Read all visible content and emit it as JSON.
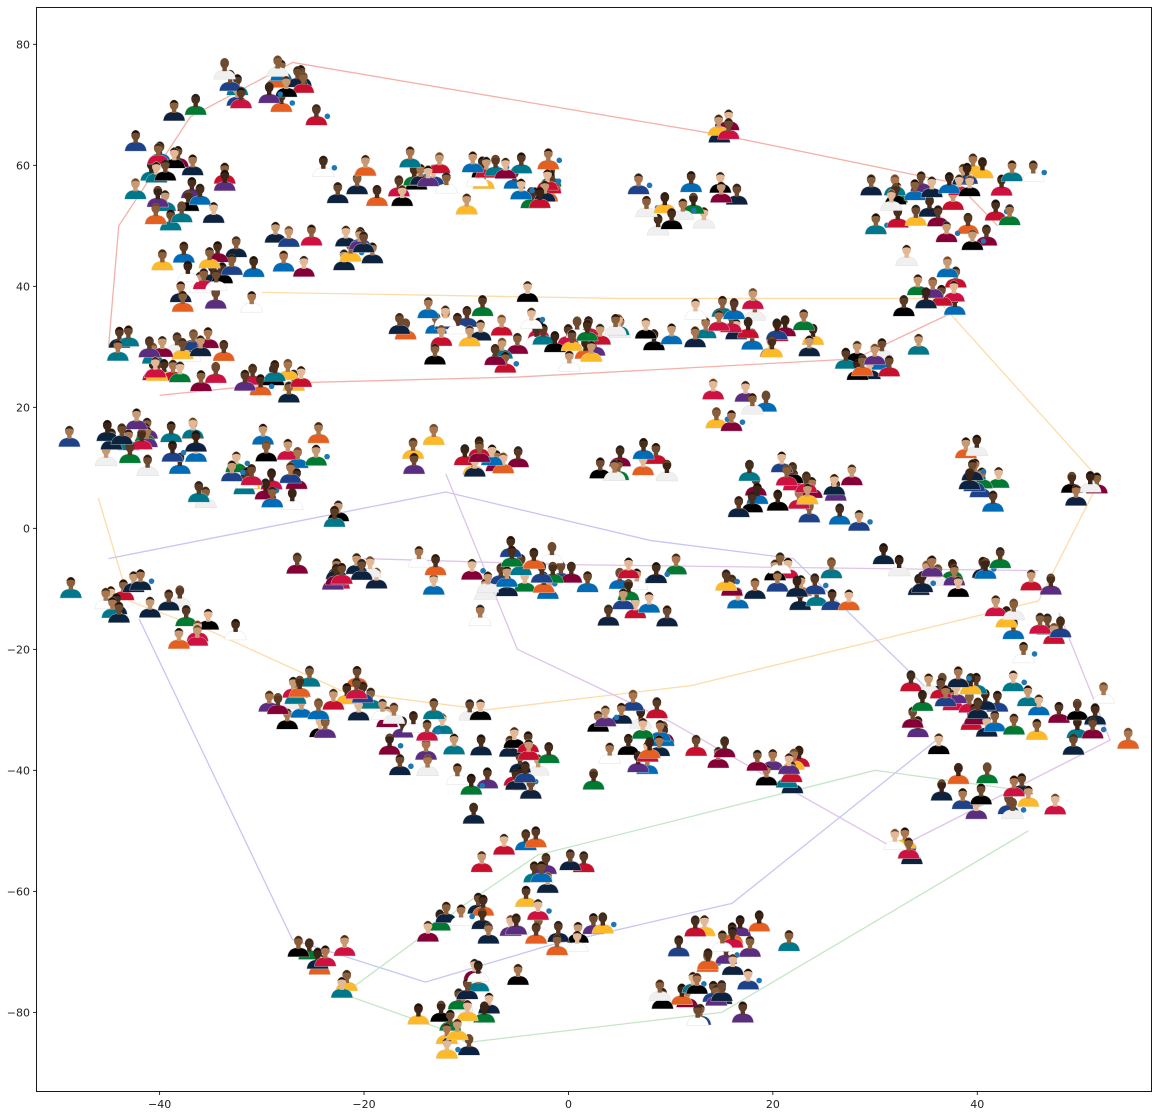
{
  "chart_data": {
    "type": "scatter",
    "title": "",
    "xlabel": "",
    "ylabel": "",
    "xlim": [
      -52,
      57
    ],
    "ylim": [
      -93,
      86
    ],
    "xticks": [
      -40,
      -20,
      0,
      20,
      40
    ],
    "yticks": [
      -80,
      -60,
      -40,
      -20,
      0,
      20,
      40,
      60,
      80
    ],
    "grid": false,
    "legend": "none",
    "marker_style": "player headshot thumbnails with small blue dot markers",
    "marker_color": "#1f77b4",
    "point_count_estimate": 450,
    "clusters": [
      {
        "center": [
          -30,
          74
        ],
        "count": 16,
        "spread": [
          5,
          5
        ]
      },
      {
        "center": [
          -38,
          57
        ],
        "count": 22,
        "spread": [
          4,
          8
        ]
      },
      {
        "center": [
          -36,
          40
        ],
        "count": 18,
        "spread": [
          5,
          5
        ]
      },
      {
        "center": [
          -38,
          27
        ],
        "count": 22,
        "spread": [
          6,
          5
        ]
      },
      {
        "center": [
          -28,
          24
        ],
        "count": 8,
        "spread": [
          4,
          3
        ]
      },
      {
        "center": [
          -42,
          15
        ],
        "count": 16,
        "spread": [
          5,
          4
        ]
      },
      {
        "center": [
          -32,
          8
        ],
        "count": 26,
        "spread": [
          8,
          6
        ]
      },
      {
        "center": [
          -43,
          -12
        ],
        "count": 12,
        "spread": [
          4,
          3
        ]
      },
      {
        "center": [
          -35,
          -17
        ],
        "count": 6,
        "spread": [
          3,
          3
        ]
      },
      {
        "center": [
          -22,
          -7
        ],
        "count": 10,
        "spread": [
          5,
          3
        ]
      },
      {
        "center": [
          -14,
          57
        ],
        "count": 22,
        "spread": [
          8,
          4
        ]
      },
      {
        "center": [
          -23,
          46
        ],
        "count": 12,
        "spread": [
          6,
          4
        ]
      },
      {
        "center": [
          -4,
          57
        ],
        "count": 14,
        "spread": [
          5,
          4
        ]
      },
      {
        "center": [
          -8,
          32
        ],
        "count": 24,
        "spread": [
          8,
          5
        ]
      },
      {
        "center": [
          2,
          31
        ],
        "count": 14,
        "spread": [
          5,
          4
        ]
      },
      {
        "center": [
          12,
          53
        ],
        "count": 12,
        "spread": [
          5,
          5
        ]
      },
      {
        "center": [
          16,
          65
        ],
        "count": 4,
        "spread": [
          2,
          2
        ]
      },
      {
        "center": [
          36,
          54
        ],
        "count": 30,
        "spread": [
          7,
          7
        ]
      },
      {
        "center": [
          35,
          40
        ],
        "count": 10,
        "spread": [
          5,
          4
        ]
      },
      {
        "center": [
          18,
          32
        ],
        "count": 22,
        "spread": [
          8,
          5
        ]
      },
      {
        "center": [
          28,
          28
        ],
        "count": 10,
        "spread": [
          5,
          3
        ]
      },
      {
        "center": [
          17,
          20
        ],
        "count": 6,
        "spread": [
          4,
          3
        ]
      },
      {
        "center": [
          -10,
          12
        ],
        "count": 12,
        "spread": [
          5,
          4
        ]
      },
      {
        "center": [
          6,
          10
        ],
        "count": 8,
        "spread": [
          4,
          3
        ]
      },
      {
        "center": [
          20,
          5
        ],
        "count": 20,
        "spread": [
          7,
          5
        ]
      },
      {
        "center": [
          40,
          9
        ],
        "count": 10,
        "spread": [
          4,
          4
        ]
      },
      {
        "center": [
          51,
          7
        ],
        "count": 4,
        "spread": [
          2,
          2
        ]
      },
      {
        "center": [
          -5,
          -8
        ],
        "count": 22,
        "spread": [
          7,
          5
        ]
      },
      {
        "center": [
          7,
          -10
        ],
        "count": 12,
        "spread": [
          4,
          5
        ]
      },
      {
        "center": [
          20,
          -9
        ],
        "count": 16,
        "spread": [
          6,
          4
        ]
      },
      {
        "center": [
          36,
          -8
        ],
        "count": 14,
        "spread": [
          5,
          3
        ]
      },
      {
        "center": [
          45,
          -15
        ],
        "count": 12,
        "spread": [
          4,
          6
        ]
      },
      {
        "center": [
          -24,
          -30
        ],
        "count": 22,
        "spread": [
          8,
          6
        ]
      },
      {
        "center": [
          -14,
          -35
        ],
        "count": 14,
        "spread": [
          6,
          5
        ]
      },
      {
        "center": [
          -5,
          -40
        ],
        "count": 16,
        "spread": [
          5,
          6
        ]
      },
      {
        "center": [
          8,
          -36
        ],
        "count": 20,
        "spread": [
          6,
          6
        ]
      },
      {
        "center": [
          20,
          -40
        ],
        "count": 10,
        "spread": [
          5,
          3
        ]
      },
      {
        "center": [
          38,
          -30
        ],
        "count": 22,
        "spread": [
          6,
          5
        ]
      },
      {
        "center": [
          48,
          -32
        ],
        "count": 14,
        "spread": [
          5,
          4
        ]
      },
      {
        "center": [
          42,
          -45
        ],
        "count": 12,
        "spread": [
          5,
          4
        ]
      },
      {
        "center": [
          33,
          -53
        ],
        "count": 4,
        "spread": [
          2,
          2
        ]
      },
      {
        "center": [
          -3,
          -55
        ],
        "count": 10,
        "spread": [
          4,
          5
        ]
      },
      {
        "center": [
          -10,
          -65
        ],
        "count": 10,
        "spread": [
          5,
          4
        ]
      },
      {
        "center": [
          0,
          -67
        ],
        "count": 10,
        "spread": [
          5,
          3
        ]
      },
      {
        "center": [
          15,
          -68
        ],
        "count": 12,
        "spread": [
          6,
          4
        ]
      },
      {
        "center": [
          -24,
          -70
        ],
        "count": 6,
        "spread": [
          3,
          3
        ]
      },
      {
        "center": [
          -22,
          -76
        ],
        "count": 2,
        "spread": [
          1,
          1
        ]
      },
      {
        "center": [
          -10,
          -78
        ],
        "count": 14,
        "spread": [
          5,
          4
        ]
      },
      {
        "center": [
          12,
          -77
        ],
        "count": 16,
        "spread": [
          6,
          4
        ]
      },
      {
        "center": [
          -11,
          -85
        ],
        "count": 4,
        "spread": [
          2,
          2
        ]
      }
    ],
    "connecting_lines": [
      {
        "color": "#f4a8a0",
        "points": [
          [
            -27,
            77
          ],
          [
            15,
            65
          ],
          [
            38,
            57
          ],
          [
            42,
            50
          ]
        ]
      },
      {
        "color": "#f4a8a0",
        "points": [
          [
            -27,
            77
          ],
          [
            -37,
            68
          ],
          [
            -44,
            50
          ],
          [
            -45,
            30
          ]
        ]
      },
      {
        "color": "#f4a8a0",
        "points": [
          [
            -40,
            22
          ],
          [
            -28,
            24
          ],
          [
            -5,
            25
          ],
          [
            28,
            28
          ],
          [
            38,
            36
          ]
        ]
      },
      {
        "color": "#fdd8a0",
        "points": [
          [
            -30,
            39
          ],
          [
            5,
            38
          ],
          [
            36,
            38
          ],
          [
            52,
            8
          ]
        ]
      },
      {
        "color": "#fdd8a0",
        "points": [
          [
            52,
            8
          ],
          [
            46,
            -12
          ],
          [
            12,
            -26
          ],
          [
            -8,
            -30
          ]
        ]
      },
      {
        "color": "#fdd8a0",
        "points": [
          [
            -46,
            5
          ],
          [
            -43,
            -12
          ],
          [
            -35,
            -17
          ],
          [
            -22,
            -27
          ],
          [
            -8,
            -30
          ]
        ]
      },
      {
        "color": "#c0c0f4",
        "points": [
          [
            -45,
            -5
          ],
          [
            -30,
            0
          ],
          [
            -12,
            6
          ],
          [
            8,
            -2
          ],
          [
            22,
            -5
          ],
          [
            36,
            -28
          ]
        ]
      },
      {
        "color": "#c0c0f4",
        "points": [
          [
            -42,
            -15
          ],
          [
            -27,
            -68
          ],
          [
            -14,
            -75
          ],
          [
            -2,
            -69
          ],
          [
            16,
            -62
          ],
          [
            36,
            -35
          ]
        ]
      },
      {
        "color": "#dcbce8",
        "points": [
          [
            -20,
            -5
          ],
          [
            0,
            -6
          ],
          [
            46,
            -7
          ]
        ]
      },
      {
        "color": "#dcbce8",
        "points": [
          [
            -12,
            9
          ],
          [
            -5,
            -20
          ],
          [
            10,
            -32
          ],
          [
            32,
            -53
          ]
        ]
      },
      {
        "color": "#dcbce8",
        "points": [
          [
            48,
            -14
          ],
          [
            53,
            -35
          ],
          [
            32,
            -53
          ]
        ]
      },
      {
        "color": "#bfe3bf",
        "points": [
          [
            -22,
            -77
          ],
          [
            -12,
            -83
          ],
          [
            -10,
            -85
          ],
          [
            15,
            -80
          ],
          [
            45,
            -50
          ]
        ]
      },
      {
        "color": "#bfe3bf",
        "points": [
          [
            -22,
            -77
          ],
          [
            -10,
            -62
          ],
          [
            -3,
            -54
          ],
          [
            30,
            -40
          ],
          [
            43,
            -43
          ]
        ]
      }
    ]
  }
}
